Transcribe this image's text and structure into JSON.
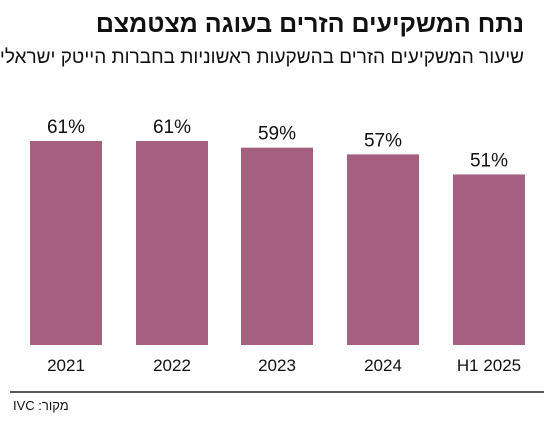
{
  "title": "נתח המשקיעים הזרים בעוגה מצטמצם",
  "subtitle": "שיעור המשקיעים הזרים בהשקעות ראשוניות בחברות הייטק ישראליות",
  "source": "מקור: IVC",
  "colors": {
    "bar": "#a5607f",
    "axis": "#222222",
    "text": "#111111"
  },
  "chart_data": {
    "type": "bar",
    "title": "נתח המשקיעים הזרים בעוגה מצטמצם",
    "subtitle": "שיעור המשקיעים הזרים בהשקעות ראשוניות בחברות הייטק ישראליות",
    "categories": [
      "2021",
      "2022",
      "2023",
      "2024",
      "H1 2025"
    ],
    "values": [
      61,
      61,
      59,
      57,
      51
    ],
    "value_labels": [
      "61%",
      "61%",
      "59%",
      "57%",
      "51%"
    ],
    "unit": "%",
    "ylim": [
      0,
      61
    ],
    "grid": false,
    "legend": "none"
  }
}
